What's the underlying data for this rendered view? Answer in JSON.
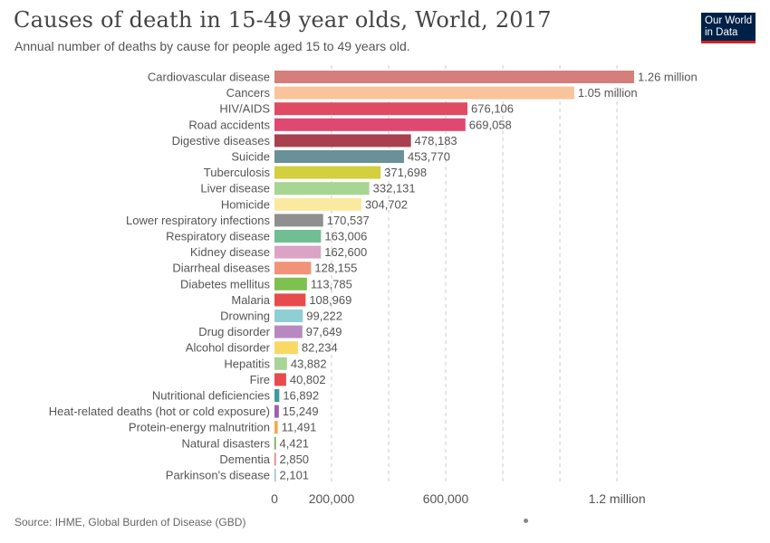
{
  "header": {
    "title": "Causes of death in 15-49 year olds, World, 2017",
    "subtitle": "Annual number of deaths by cause for people aged 15 to 49 years old."
  },
  "logo": {
    "line1": "Our World",
    "line2": "in Data"
  },
  "footer": {
    "source": "Source: IHME, Global Burden of Disease (GBD)"
  },
  "chart_data": {
    "type": "bar",
    "orientation": "horizontal",
    "title": "Causes of death in 15-49 year olds, World, 2017",
    "xlim": [
      0,
      1260000
    ],
    "xticks": [
      {
        "value": 0,
        "label": "0"
      },
      {
        "value": 200000,
        "label": "200,000"
      },
      {
        "value": 600000,
        "label": "600,000"
      },
      {
        "value": 1200000,
        "label": "1.2 million"
      }
    ],
    "gridlines": [
      200000,
      400000,
      600000,
      800000,
      1000000,
      1200000
    ],
    "categories": [
      {
        "name": "Cardiovascular disease",
        "value": 1260000,
        "label": "1.26 million",
        "color": "#d47f7b"
      },
      {
        "name": "Cancers",
        "value": 1050000,
        "label": "1.05 million",
        "color": "#f9c49b"
      },
      {
        "name": "HIV/AIDS",
        "value": 676106,
        "label": "676,106",
        "color": "#e04a63"
      },
      {
        "name": "Road accidents",
        "value": 669058,
        "label": "669,058",
        "color": "#df4870"
      },
      {
        "name": "Digestive diseases",
        "value": 478183,
        "label": "478,183",
        "color": "#a8404d"
      },
      {
        "name": "Suicide",
        "value": 453770,
        "label": "453,770",
        "color": "#6a9098"
      },
      {
        "name": "Tuberculosis",
        "value": 371698,
        "label": "371,698",
        "color": "#d3cf3f"
      },
      {
        "name": "Liver disease",
        "value": 332131,
        "label": "332,131",
        "color": "#a7d592"
      },
      {
        "name": "Homicide",
        "value": 304702,
        "label": "304,702",
        "color": "#fbe99f"
      },
      {
        "name": "Lower respiratory infections",
        "value": 170537,
        "label": "170,537",
        "color": "#8f8f8f"
      },
      {
        "name": "Respiratory disease",
        "value": 163006,
        "label": "163,006",
        "color": "#6fbf92"
      },
      {
        "name": "Kidney disease",
        "value": 162600,
        "label": "162,600",
        "color": "#dba3c6"
      },
      {
        "name": "Diarrheal diseases",
        "value": 128155,
        "label": "128,155",
        "color": "#f19378"
      },
      {
        "name": "Diabetes mellitus",
        "value": 113785,
        "label": "113,785",
        "color": "#7fc04f"
      },
      {
        "name": "Malaria",
        "value": 108969,
        "label": "108,969",
        "color": "#e84b4b"
      },
      {
        "name": "Drowning",
        "value": 99222,
        "label": "99,222",
        "color": "#8ecfd4"
      },
      {
        "name": "Drug disorder",
        "value": 97649,
        "label": "97,649",
        "color": "#b889c0"
      },
      {
        "name": "Alcohol disorder",
        "value": 82234,
        "label": "82,234",
        "color": "#fad864"
      },
      {
        "name": "Hepatitis",
        "value": 43882,
        "label": "43,882",
        "color": "#a9d497"
      },
      {
        "name": "Fire",
        "value": 40802,
        "label": "40,802",
        "color": "#e84b4b"
      },
      {
        "name": "Nutritional deficiencies",
        "value": 16892,
        "label": "16,892",
        "color": "#3f9b9b"
      },
      {
        "name": "Heat-related deaths (hot or cold exposure)",
        "value": 15249,
        "label": "15,249",
        "color": "#9b5fb5"
      },
      {
        "name": "Protein-energy malnutrition",
        "value": 11491,
        "label": "11,491",
        "color": "#f3a94b"
      },
      {
        "name": "Natural disasters",
        "value": 4421,
        "label": "4,421",
        "color": "#6a9d5a"
      },
      {
        "name": "Dementia",
        "value": 2850,
        "label": "2,850",
        "color": "#e07a7a"
      },
      {
        "name": "Parkinson's disease",
        "value": 2101,
        "label": "2,101",
        "color": "#9bbcd6"
      }
    ]
  }
}
